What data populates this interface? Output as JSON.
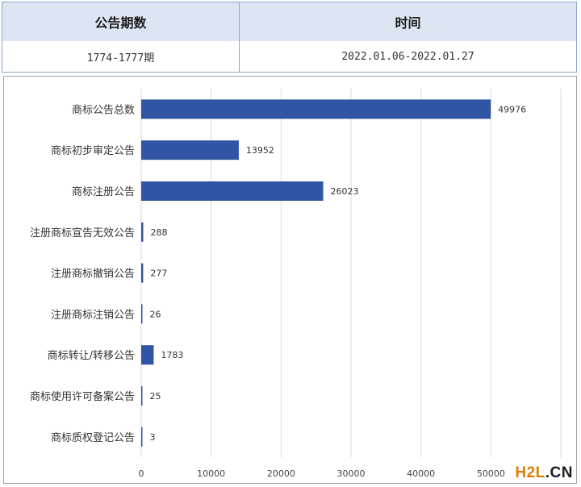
{
  "info_table": {
    "headers": [
      "公告期数",
      "时间"
    ],
    "values": [
      "1774-1777期",
      "2022.01.06-2022.01.27"
    ]
  },
  "chart_data": {
    "type": "bar",
    "orientation": "horizontal",
    "categories": [
      "商标公告总数",
      "商标初步审定公告",
      "商标注册公告",
      "注册商标宣告无效公告",
      "注册商标撤销公告",
      "注册商标注销公告",
      "商标转让/转移公告",
      "商标使用许可备案公告",
      "商标质权登记公告"
    ],
    "values": [
      49976,
      13952,
      26023,
      288,
      277,
      26,
      1783,
      25,
      3
    ],
    "xlim": [
      0,
      60000
    ],
    "xticks": [
      0,
      10000,
      20000,
      30000,
      40000,
      50000
    ],
    "grid": true,
    "bar_color": "#2f55a4"
  },
  "watermark": {
    "part1": "H2L",
    "part2": ".CN"
  }
}
